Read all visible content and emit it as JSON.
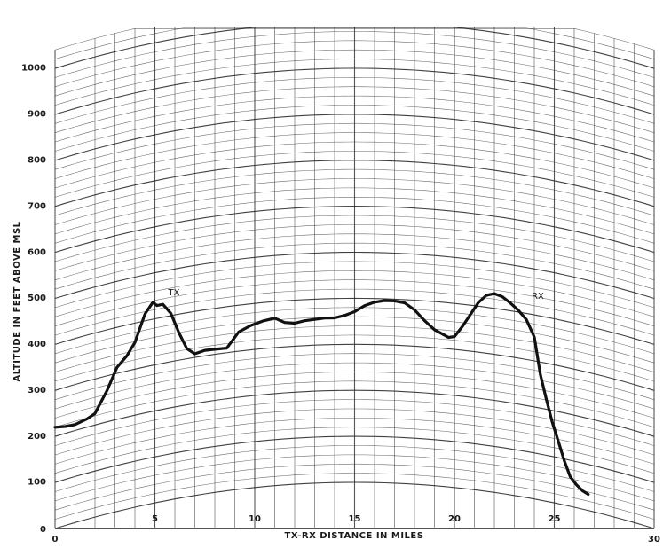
{
  "chart_data": {
    "type": "line",
    "xlabel": "TX-RX DISTANCE IN MILES",
    "ylabel": "ALTITUDE IN FEET ABOVE MSL",
    "xlim": [
      0,
      30
    ],
    "ylim": [
      0,
      1000
    ],
    "x_ticks": [
      "0",
      "5",
      "10",
      "15",
      "20",
      "25",
      "30"
    ],
    "y_ticks": [
      "100",
      "200",
      "300",
      "400",
      "500",
      "600",
      "700",
      "800",
      "900",
      "1000"
    ],
    "grid": "curved earth-profile grid",
    "series": [
      {
        "x": [
          0,
          0.5,
          1,
          1.6,
          2,
          2.6,
          3.1,
          3.6,
          4,
          4.5,
          4.9,
          5.1,
          5.4,
          5.8,
          6.2,
          6.6,
          7,
          7.5,
          8,
          8.6,
          9.2,
          9.8,
          10.4,
          11,
          11.5,
          12,
          12.5,
          13,
          13.5,
          14,
          14.5,
          15,
          15.5,
          16,
          16.5,
          17,
          17.5,
          18,
          18.5,
          19,
          19.4,
          19.7,
          20,
          20.4,
          20.8,
          21.2,
          21.6,
          22,
          22.4,
          22.8,
          23.2,
          23.6,
          24,
          24.3,
          24.6,
          24.9,
          25.2,
          25.5,
          25.8,
          26.1,
          26.4,
          26.7
        ],
        "y": [
          220,
          215,
          213,
          218,
          225,
          268,
          313,
          333,
          358,
          415,
          437,
          428,
          428,
          405,
          360,
          322,
          308,
          312,
          311,
          310,
          342,
          353,
          360,
          364,
          353,
          350,
          354,
          356,
          358,
          358,
          363,
          371,
          384,
          392,
          396,
          396,
          393,
          379,
          357,
          339,
          331,
          325,
          328,
          352,
          380,
          408,
          426,
          432,
          428,
          417,
          404,
          387,
          352,
          273,
          222,
          174,
          136,
          96,
          64,
          50,
          40,
          35
        ]
      }
    ],
    "annotations": [
      {
        "text": "TX",
        "x": 5.4,
        "y": 455
      },
      {
        "text": "RX",
        "x": 23.6,
        "y": 440
      }
    ]
  }
}
